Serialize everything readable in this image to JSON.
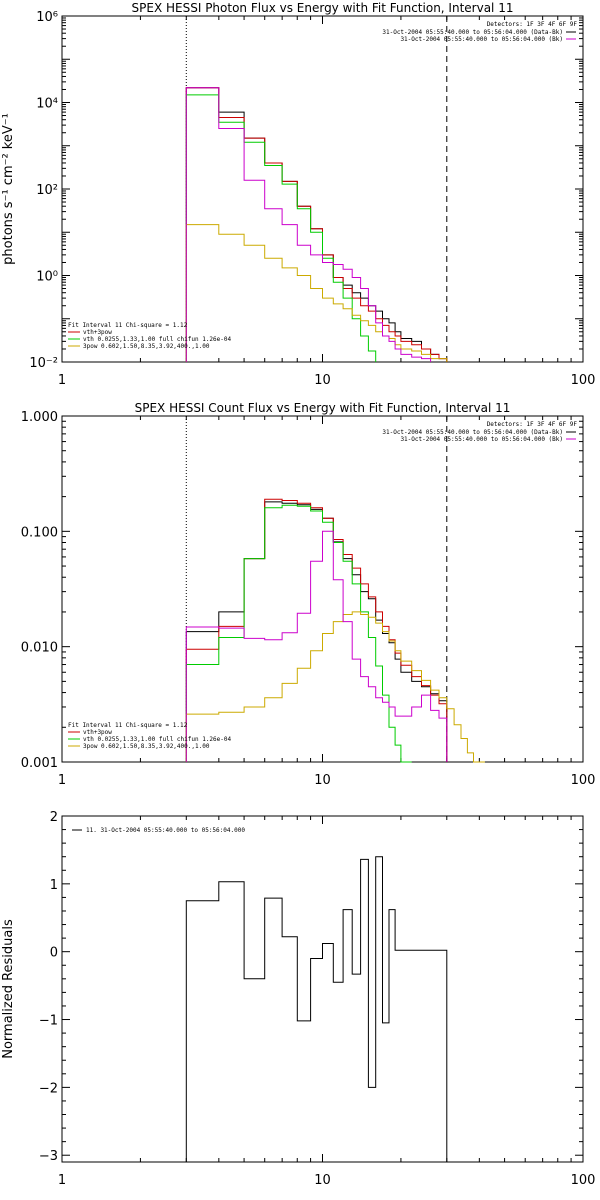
{
  "chart_data": [
    {
      "type": "line",
      "title": "SPEX HESSI Photon Flux vs Energy with Fit Function, Interval 11",
      "ylabel": "photons s⁻¹ cm⁻² keV⁻¹",
      "xlabel": "",
      "xscale": "log",
      "yscale": "log",
      "xlim": [
        1,
        100
      ],
      "ylim": [
        0.01,
        1000000
      ],
      "x_ticks": [
        {
          "value": 1,
          "label": "1"
        },
        {
          "value": 10,
          "label": "10"
        },
        {
          "value": 100,
          "label": "100"
        }
      ],
      "y_ticks": [
        {
          "value": 0.01,
          "label": "10⁻²"
        },
        {
          "value": 1,
          "label": "10⁰"
        },
        {
          "value": 100,
          "label": "10²"
        },
        {
          "value": 10000,
          "label": "10⁴"
        },
        {
          "value": 1000000,
          "label": "10⁶"
        }
      ],
      "grid": false,
      "detectors_text": "Detectors: 1F 3F 4F 6F 9F",
      "time_legend": [
        {
          "text": "31-Oct-2004 05:55:40.000 to 05:56:04.000 (Data-Bk)",
          "color": "#000000"
        },
        {
          "text": "31-Oct-2004 05:55:40.000 to 05:56:04.000 (Bk)",
          "color": "#cc00cc"
        }
      ],
      "fit_legend_header": "Fit Interval 11    Chi-square = 1.12",
      "fit_legend": [
        {
          "text": "vth+3pow",
          "color": "#cc0000"
        },
        {
          "text": "vth 0.0255,1.33,1.00  full chifun 1.26e-04",
          "color": "#00cc00"
        },
        {
          "text": "3pow 0.602,1.50,8.35,3.92,400.,1.00",
          "color": "#ccaa00"
        }
      ],
      "fit_range": [
        3,
        30
      ],
      "bin_edges": [
        3,
        4,
        5,
        6,
        7,
        8,
        9,
        10,
        11,
        12,
        13,
        14,
        15,
        16,
        17,
        18,
        19,
        20,
        22,
        24,
        26,
        28,
        30,
        32,
        34,
        36,
        38,
        40,
        42
      ],
      "series": [
        {
          "name": "Data-Bk",
          "color": "#000000",
          "values": [
            22000,
            6000,
            1500,
            400,
            150,
            40,
            12,
            3,
            0.9,
            0.6,
            0.4,
            0.3,
            0.2,
            0.15,
            0.1,
            0.08,
            0.05,
            0.035,
            0.03,
            0.02,
            0.015,
            0.012,
            null,
            null,
            null,
            null,
            null,
            null
          ]
        },
        {
          "name": "vth+3pow",
          "color": "#cc0000",
          "values": [
            22000,
            4500,
            1500,
            400,
            150,
            40,
            12,
            3,
            0.9,
            0.5,
            0.3,
            0.2,
            0.15,
            0.1,
            0.07,
            0.05,
            0.04,
            0.03,
            0.025,
            0.02,
            0.015,
            0.012,
            null,
            null,
            null,
            null,
            null,
            null
          ]
        },
        {
          "name": "vth",
          "color": "#00cc00",
          "values": [
            15000,
            3500,
            1200,
            350,
            130,
            35,
            10,
            2.5,
            0.7,
            0.3,
            0.1,
            0.04,
            0.018,
            null,
            null,
            null,
            null,
            null,
            null,
            null,
            null,
            null,
            null,
            null,
            null,
            null,
            null,
            null
          ]
        },
        {
          "name": "3pow",
          "color": "#ccaa00",
          "values": [
            15,
            9,
            5,
            2.5,
            1.5,
            1.0,
            0.5,
            0.3,
            0.22,
            0.17,
            0.12,
            0.09,
            0.07,
            0.05,
            0.04,
            0.035,
            0.025,
            0.02,
            0.018,
            0.015,
            0.012,
            0.012,
            null,
            null,
            null,
            null,
            null,
            null
          ]
        },
        {
          "name": "Bk",
          "color": "#cc00cc",
          "values": [
            22000,
            2500,
            160,
            35,
            15,
            5,
            3,
            2,
            1.8,
            1.4,
            0.9,
            0.5,
            0.2,
            0.08,
            0.04,
            0.03,
            0.02,
            0.015,
            0.013,
            0.012,
            null,
            null,
            null,
            null,
            null,
            null,
            null,
            null
          ]
        }
      ]
    },
    {
      "type": "line",
      "title": "SPEX HESSI Count Flux vs Energy with Fit Function, Interval 11",
      "ylabel": "",
      "xlabel": "",
      "xscale": "log",
      "yscale": "log",
      "xlim": [
        1,
        100
      ],
      "ylim": [
        0.001,
        1
      ],
      "x_ticks": [
        {
          "value": 1,
          "label": "1"
        },
        {
          "value": 10,
          "label": "10"
        },
        {
          "value": 100,
          "label": "100"
        }
      ],
      "y_ticks": [
        {
          "value": 0.001,
          "label": "0.001"
        },
        {
          "value": 0.01,
          "label": "0.010"
        },
        {
          "value": 0.1,
          "label": "0.100"
        },
        {
          "value": 1,
          "label": "1.000"
        }
      ],
      "grid": false,
      "detectors_text": "Detectors: 1F 3F 4F 6F 9F",
      "time_legend": [
        {
          "text": "31-Oct-2004 05:55:40.000 to 05:56:04.000 (Data-Bk)",
          "color": "#000000"
        },
        {
          "text": "31-Oct-2004 05:55:40.000 to 05:56:04.000 (Bk)",
          "color": "#cc00cc"
        }
      ],
      "fit_legend_header": "Fit Interval 11    Chi-square = 1.12",
      "fit_legend": [
        {
          "text": "vth+3pow",
          "color": "#cc0000"
        },
        {
          "text": "vth 0.0255,1.33,1.00  full chifun 1.26e-04",
          "color": "#00cc00"
        },
        {
          "text": "3pow 0.602,1.50,8.35,3.92,400.,1.00",
          "color": "#ccaa00"
        }
      ],
      "fit_range": [
        3,
        30
      ],
      "bin_edges": [
        3,
        4,
        5,
        6,
        7,
        8,
        9,
        10,
        11,
        12,
        13,
        14,
        15,
        16,
        17,
        18,
        19,
        20,
        22,
        24,
        26,
        28,
        30,
        32,
        34,
        36,
        38,
        40,
        42
      ],
      "series": [
        {
          "name": "Data-Bk",
          "color": "#000000",
          "values": [
            0.0135,
            0.02,
            0.058,
            0.18,
            0.175,
            0.17,
            0.155,
            0.13,
            0.081,
            0.058,
            0.042,
            0.03,
            0.026,
            0.017,
            0.013,
            0.0108,
            0.0078,
            0.006,
            0.005,
            0.0045,
            0.0039,
            0.0034,
            null,
            null,
            null,
            null,
            null,
            null
          ]
        },
        {
          "name": "vth+3pow",
          "color": "#cc0000",
          "values": [
            0.0095,
            0.015,
            0.058,
            0.19,
            0.185,
            0.175,
            0.16,
            0.13,
            0.085,
            0.063,
            0.048,
            0.035,
            0.027,
            0.02,
            0.015,
            0.0115,
            0.0088,
            0.0069,
            0.0055,
            0.0046,
            0.0038,
            0.0032,
            null,
            null,
            null,
            null,
            null,
            null
          ]
        },
        {
          "name": "vth",
          "color": "#00cc00",
          "values": [
            0.007,
            0.012,
            0.058,
            0.16,
            0.168,
            0.165,
            0.15,
            0.12,
            0.08,
            0.055,
            0.035,
            0.02,
            0.012,
            0.0068,
            0.0038,
            0.002,
            0.0014,
            0.001,
            null,
            null,
            null,
            null,
            null,
            null,
            null,
            null,
            null,
            null
          ]
        },
        {
          "name": "3pow",
          "color": "#ccaa00",
          "values": [
            0.0026,
            0.0027,
            0.003,
            0.0036,
            0.0048,
            0.0065,
            0.0092,
            0.013,
            0.0165,
            0.019,
            0.02,
            0.019,
            0.018,
            0.016,
            0.0135,
            0.0112,
            0.0092,
            0.0075,
            0.0062,
            0.0051,
            0.0042,
            0.0036,
            0.0029,
            0.0021,
            0.0016,
            0.0012,
            0.001,
            0.001
          ]
        },
        {
          "name": "Bk",
          "color": "#cc00cc",
          "values": [
            0.0148,
            0.0145,
            0.0118,
            0.0115,
            0.0132,
            0.0195,
            0.055,
            0.1,
            0.038,
            0.0165,
            0.0078,
            0.0055,
            0.0045,
            0.0036,
            0.0033,
            0.003,
            0.0025,
            0.0025,
            0.003,
            0.0038,
            0.0028,
            0.0024,
            null,
            null,
            null,
            null,
            null,
            null
          ]
        }
      ]
    },
    {
      "type": "line",
      "title": "",
      "ylabel": "Normalized Residuals",
      "xlabel": "",
      "xscale": "log",
      "yscale": "linear",
      "xlim": [
        1,
        100
      ],
      "ylim": [
        -3.1,
        2.0
      ],
      "x_ticks": [
        {
          "value": 1,
          "label": "1"
        },
        {
          "value": 10,
          "label": "10"
        },
        {
          "value": 100,
          "label": "100"
        }
      ],
      "y_ticks": [
        {
          "value": -3,
          "label": "−3"
        },
        {
          "value": -2,
          "label": "−2"
        },
        {
          "value": -1,
          "label": "−1"
        },
        {
          "value": 0,
          "label": "0"
        },
        {
          "value": 1,
          "label": "1"
        },
        {
          "value": 2,
          "label": "2"
        }
      ],
      "grid": false,
      "legend": [
        {
          "text": "11. 31-Oct-2004 05:55:40.000 to 05:56:04.000",
          "color": "#000000"
        }
      ],
      "bin_edges": [
        3,
        4,
        5,
        6,
        7,
        8,
        9,
        10,
        11,
        12,
        13,
        14,
        15,
        16,
        17,
        18,
        19,
        20,
        22,
        24,
        26,
        28,
        30
      ],
      "series": [
        {
          "name": "11. 31-Oct-2004 05:55:40.000 to 05:56:04.000",
          "color": "#000000",
          "values": [
            0.75,
            1.03,
            -0.4,
            0.79,
            0.22,
            -1.02,
            -0.1,
            0.12,
            -0.45,
            0.62,
            -0.33,
            1.36,
            -2.0,
            1.4,
            -1.05,
            0.62,
            0.02,
            0.02,
            0.02,
            0.02,
            0.02,
            0.02
          ]
        }
      ]
    }
  ]
}
